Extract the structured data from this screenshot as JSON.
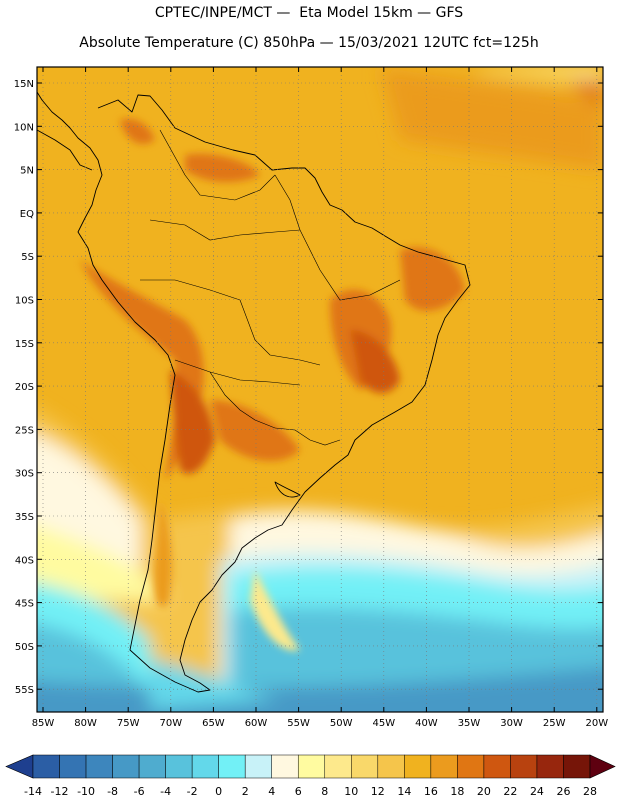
{
  "header": {
    "line1": "CPTEC/INPE/MCT —  Eta Model 15km — GFS",
    "line2": "Absolute Temperature (C) 850hPa — 15/03/2021 12UTC fct=125h"
  },
  "map": {
    "lat_labels": [
      "15N",
      "10N",
      "5N",
      "EQ",
      "5S",
      "10S",
      "15S",
      "20S",
      "25S",
      "30S",
      "35S",
      "40S",
      "45S",
      "50S",
      "55S"
    ],
    "lon_labels": [
      "85W",
      "80W",
      "75W",
      "70W",
      "65W",
      "60W",
      "55W",
      "50W",
      "45W",
      "40W",
      "35W",
      "30W",
      "25W",
      "20W"
    ],
    "grid": "dotted"
  },
  "colorbar": {
    "labels": [
      "-14",
      "-12",
      "-10",
      "-8",
      "-6",
      "-4",
      "-2",
      "0",
      "2",
      "4",
      "6",
      "8",
      "10",
      "12",
      "14",
      "16",
      "18",
      "20",
      "22",
      "24",
      "26",
      "28"
    ],
    "colors": [
      "#1e3f8f",
      "#2b5ea5",
      "#3474b3",
      "#3d86bd",
      "#4699c6",
      "#4faccf",
      "#58c2dc",
      "#63d8ea",
      "#72f0f6",
      "#c8f2f8",
      "#fff8e0",
      "#fffba0",
      "#fde98c",
      "#f9d86a",
      "#f5c54b",
      "#f0b21f",
      "#eb9b1e",
      "#e07613",
      "#cf5710",
      "#b8420f",
      "#97260d",
      "#761508",
      "#5e0010"
    ]
  }
}
